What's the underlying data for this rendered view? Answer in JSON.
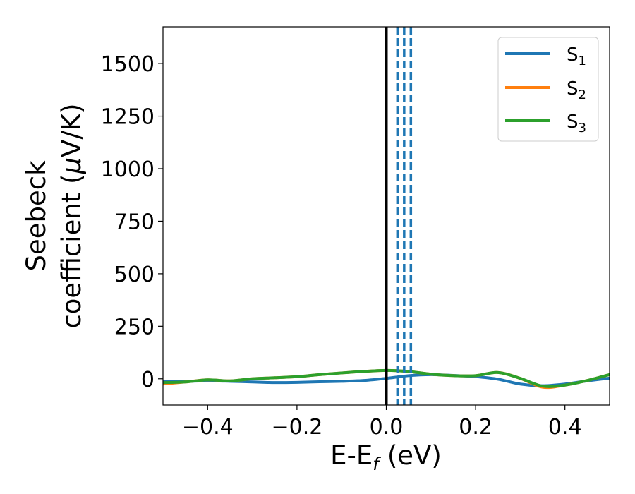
{
  "chart_data": {
    "type": "line",
    "xlabel": {
      "main": "E-E",
      "sub": "f",
      "tail": " (eV)"
    },
    "ylabel": {
      "line1": "Seebeck",
      "line2_prefix": "coefficient  (",
      "line2_mu": "μ",
      "line2_suffix": "V/K)"
    },
    "xlim": [
      -0.5,
      0.5
    ],
    "ylim": [
      -125,
      1675
    ],
    "xticks": [
      -0.4,
      -0.2,
      0.0,
      0.2,
      0.4
    ],
    "xtick_labels": [
      "−0.4",
      "−0.2",
      "0.0",
      "0.2",
      "0.4"
    ],
    "yticks": [
      0,
      250,
      500,
      750,
      1000,
      1250,
      1500
    ],
    "ytick_labels": [
      "0",
      "250",
      "500",
      "750",
      "1000",
      "1250",
      "1500"
    ],
    "grid": false,
    "legend_position": "top-right",
    "series": [
      {
        "name": {
          "base": "S",
          "sub": "1"
        },
        "color": "#1f77b4",
        "x": [
          -0.5,
          -0.45,
          -0.4,
          -0.35,
          -0.3,
          -0.25,
          -0.2,
          -0.15,
          -0.1,
          -0.05,
          0.0,
          0.05,
          0.1,
          0.15,
          0.2,
          0.25,
          0.3,
          0.35,
          0.4,
          0.45,
          0.5
        ],
        "y": [
          -12,
          -12,
          -10,
          -12,
          -15,
          -18,
          -17,
          -14,
          -12,
          -8,
          2,
          15,
          20,
          16,
          10,
          -2,
          -25,
          -33,
          -25,
          -10,
          3
        ]
      },
      {
        "name": {
          "base": "S",
          "sub": "2"
        },
        "color": "#ff7f0e",
        "x": [
          -0.5,
          -0.45,
          -0.4,
          -0.35,
          -0.3,
          -0.25,
          -0.2,
          -0.15,
          -0.1,
          -0.05,
          0.0,
          0.05,
          0.1,
          0.15,
          0.2,
          0.25,
          0.3,
          0.35,
          0.4,
          0.45,
          0.5
        ],
        "y": [
          -25,
          -15,
          -5,
          -10,
          0,
          5,
          10,
          20,
          28,
          35,
          40,
          35,
          22,
          15,
          15,
          30,
          2,
          -40,
          -30,
          -8,
          20
        ]
      },
      {
        "name": {
          "base": "S",
          "sub": "3"
        },
        "color": "#2ca02c",
        "x": [
          -0.5,
          -0.45,
          -0.4,
          -0.35,
          -0.3,
          -0.25,
          -0.2,
          -0.15,
          -0.1,
          -0.05,
          0.0,
          0.05,
          0.1,
          0.15,
          0.2,
          0.25,
          0.3,
          0.35,
          0.4,
          0.45,
          0.5
        ],
        "y": [
          -18,
          -15,
          -5,
          -10,
          0,
          5,
          10,
          20,
          28,
          35,
          40,
          35,
          22,
          15,
          15,
          30,
          2,
          -35,
          -30,
          -8,
          20
        ]
      }
    ],
    "vertical_lines": [
      {
        "x": 0.0,
        "color": "#000000",
        "style": "solid"
      },
      {
        "x": 0.025,
        "color": "#1f77b4",
        "style": "dashed"
      },
      {
        "x": 0.04,
        "color": "#1f77b4",
        "style": "dashed"
      },
      {
        "x": 0.055,
        "color": "#1f77b4",
        "style": "dashed"
      }
    ]
  }
}
